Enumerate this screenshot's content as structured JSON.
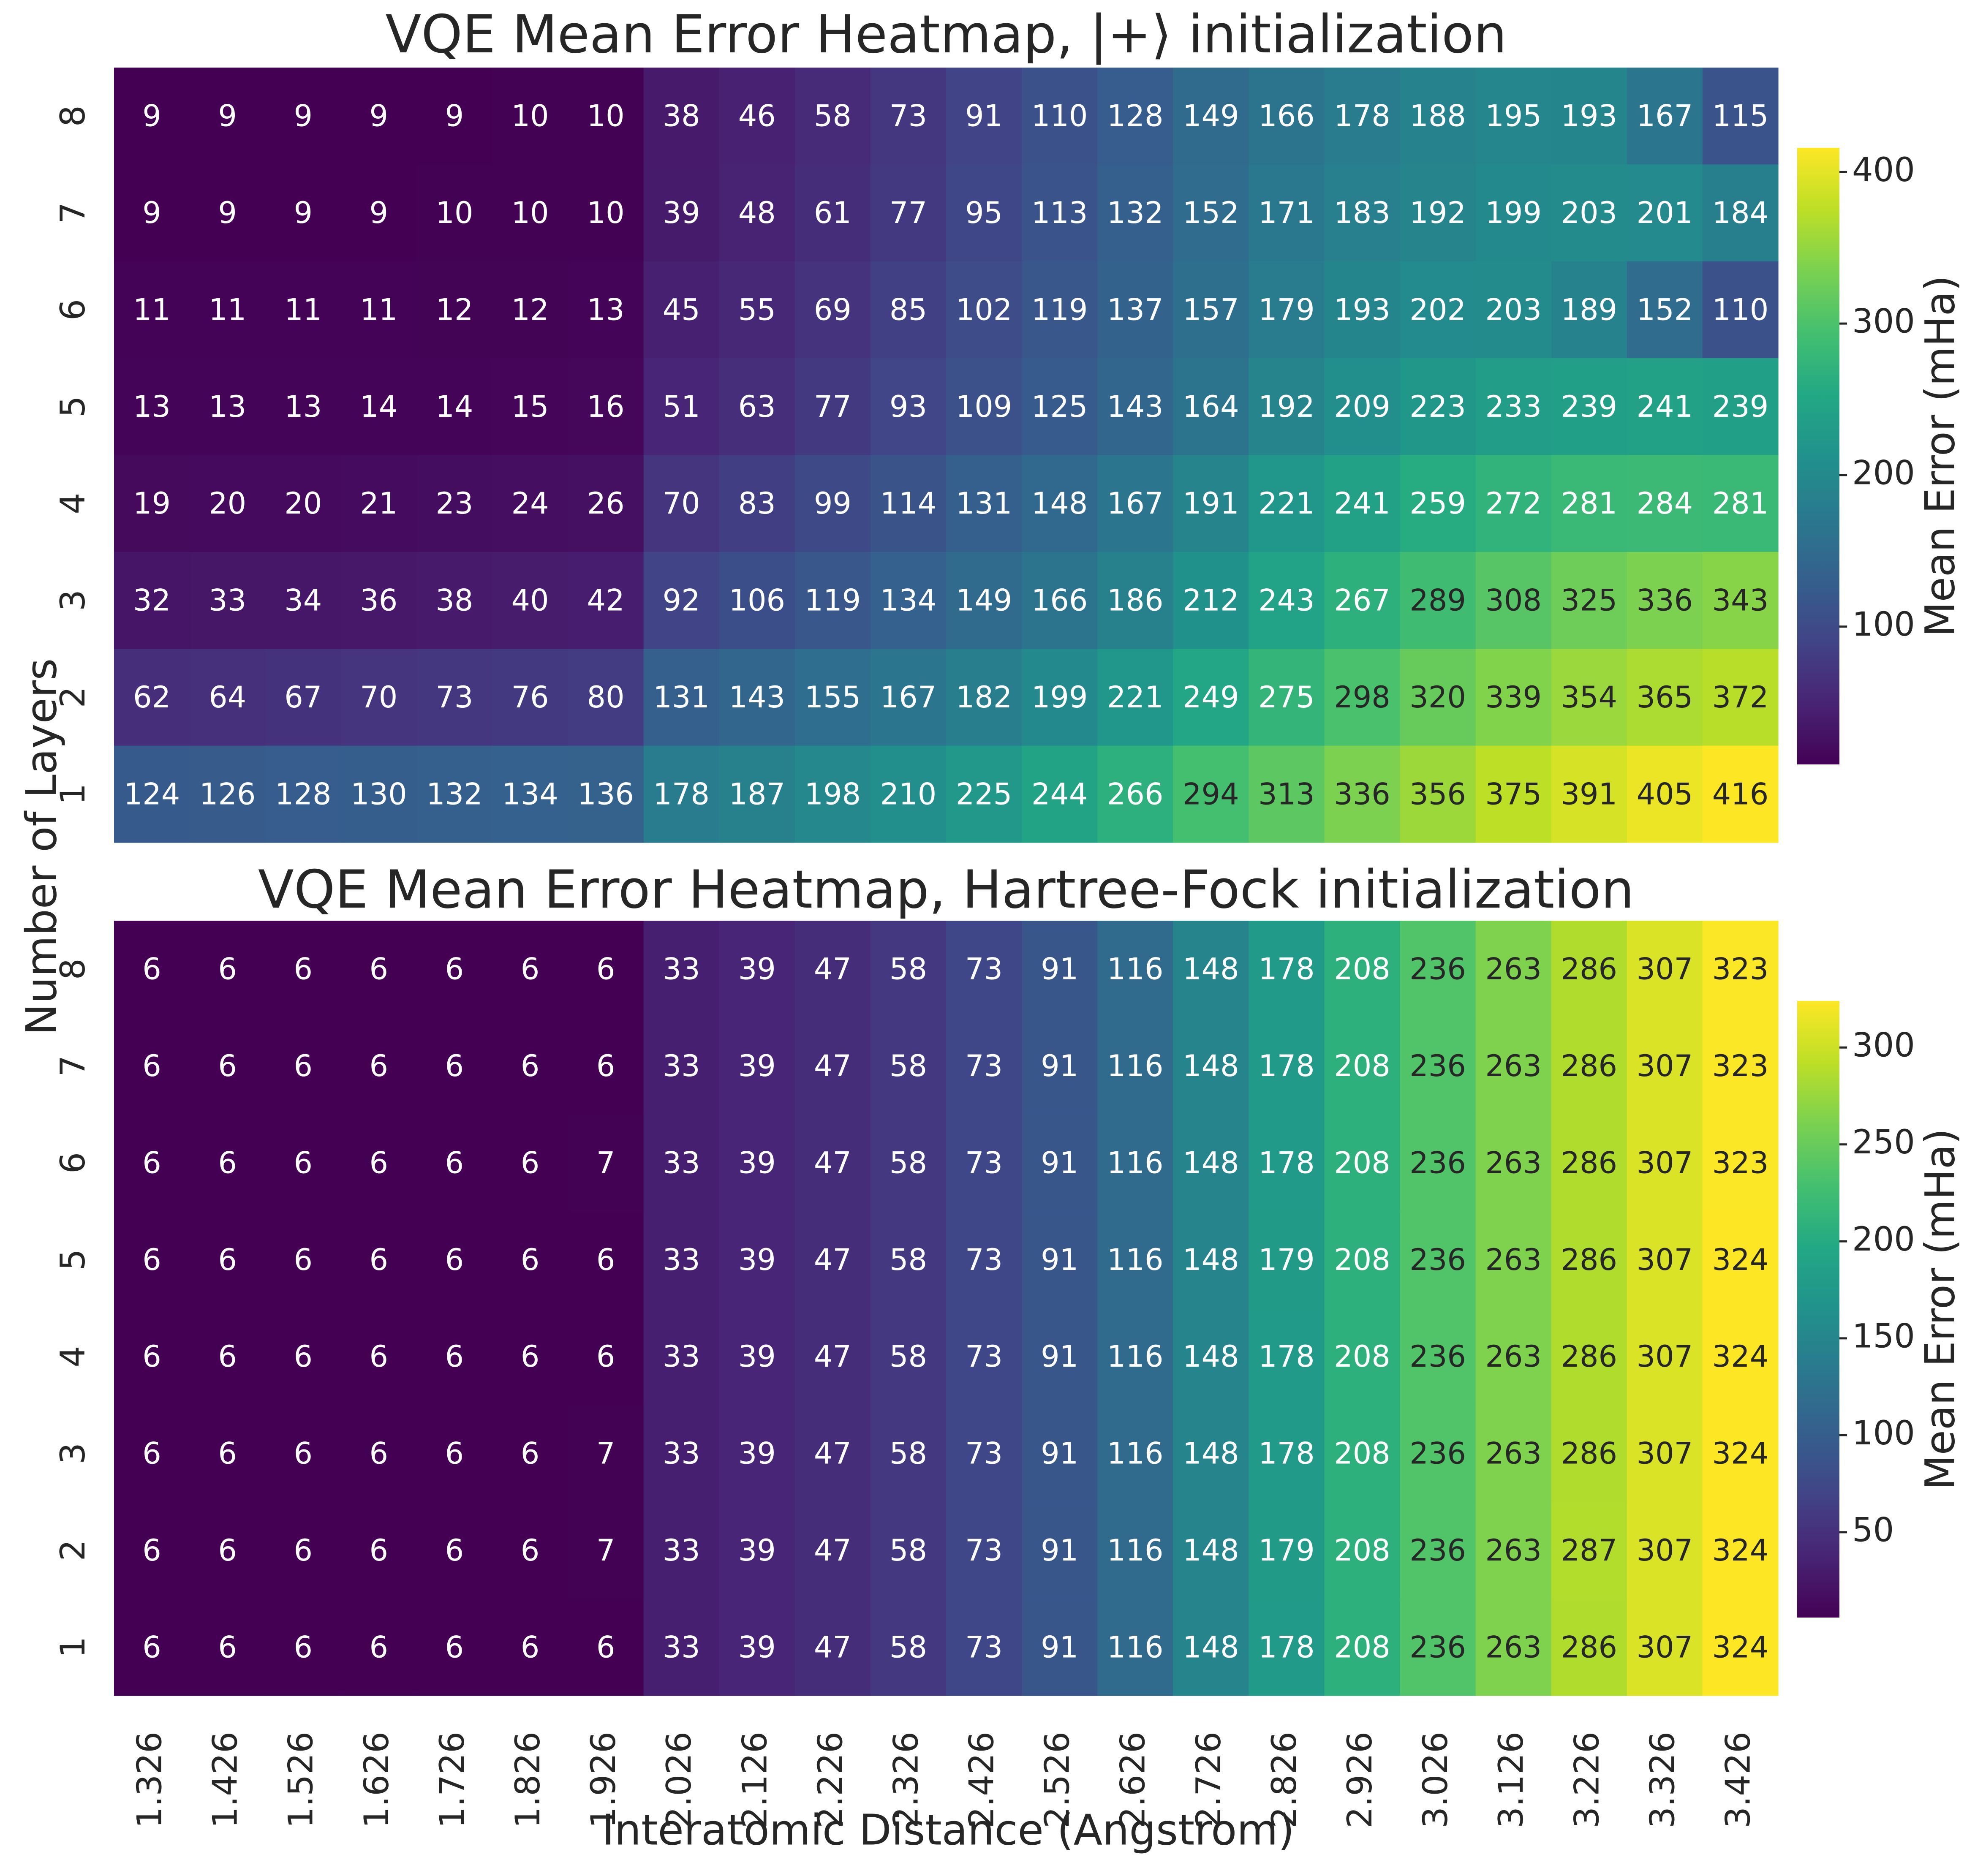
{
  "figure": {
    "shared_ylabel": "Number of Layers",
    "shared_xlabel": "Interatomic Distance (Angstrom)"
  },
  "chart_data": [
    {
      "type": "heatmap",
      "title": "VQE Mean Error Heatmap, |+⟩ initialization",
      "xlabel": "Interatomic Distance (Angstrom)",
      "ylabel": "Number of Layers",
      "x": [
        "1.326",
        "1.426",
        "1.526",
        "1.626",
        "1.726",
        "1.826",
        "1.926",
        "2.026",
        "2.126",
        "2.226",
        "2.326",
        "2.426",
        "2.526",
        "2.626",
        "2.726",
        "2.826",
        "2.926",
        "3.026",
        "3.126",
        "3.226",
        "3.326",
        "3.426"
      ],
      "y": [
        "8",
        "7",
        "6",
        "5",
        "4",
        "3",
        "2",
        "1"
      ],
      "values": [
        [
          9,
          9,
          9,
          9,
          9,
          10,
          10,
          38,
          46,
          58,
          73,
          91,
          110,
          128,
          149,
          166,
          178,
          188,
          195,
          193,
          167,
          115
        ],
        [
          9,
          9,
          9,
          9,
          10,
          10,
          10,
          39,
          48,
          61,
          77,
          95,
          113,
          132,
          152,
          171,
          183,
          192,
          199,
          203,
          201,
          184
        ],
        [
          11,
          11,
          11,
          11,
          12,
          12,
          13,
          45,
          55,
          69,
          85,
          102,
          119,
          137,
          157,
          179,
          193,
          202,
          203,
          189,
          152,
          110
        ],
        [
          13,
          13,
          13,
          14,
          14,
          15,
          16,
          51,
          63,
          77,
          93,
          109,
          125,
          143,
          164,
          192,
          209,
          223,
          233,
          239,
          241,
          239
        ],
        [
          19,
          20,
          20,
          21,
          23,
          24,
          26,
          70,
          83,
          99,
          114,
          131,
          148,
          167,
          191,
          221,
          241,
          259,
          272,
          281,
          284,
          281
        ],
        [
          32,
          33,
          34,
          36,
          38,
          40,
          42,
          92,
          106,
          119,
          134,
          149,
          166,
          186,
          212,
          243,
          267,
          289,
          308,
          325,
          336,
          343
        ],
        [
          62,
          64,
          67,
          70,
          73,
          76,
          80,
          131,
          143,
          155,
          167,
          182,
          199,
          221,
          249,
          275,
          298,
          320,
          339,
          354,
          365,
          372
        ],
        [
          124,
          126,
          128,
          130,
          132,
          134,
          136,
          178,
          187,
          198,
          210,
          225,
          244,
          266,
          294,
          313,
          336,
          356,
          375,
          391,
          405,
          416
        ]
      ],
      "colormap": "viridis",
      "color_range": [
        9,
        416
      ],
      "colorbar": {
        "label": "Mean Error (mHa)",
        "ticks": [
          "100",
          "200",
          "300",
          "400"
        ]
      }
    },
    {
      "type": "heatmap",
      "title": "VQE Mean Error Heatmap, Hartree-Fock initialization",
      "xlabel": "Interatomic Distance (Angstrom)",
      "ylabel": "Number of Layers",
      "x": [
        "1.326",
        "1.426",
        "1.526",
        "1.626",
        "1.726",
        "1.826",
        "1.926",
        "2.026",
        "2.126",
        "2.226",
        "2.326",
        "2.426",
        "2.526",
        "2.626",
        "2.726",
        "2.826",
        "2.926",
        "3.026",
        "3.126",
        "3.226",
        "3.326",
        "3.426"
      ],
      "y": [
        "8",
        "7",
        "6",
        "5",
        "4",
        "3",
        "2",
        "1"
      ],
      "values": [
        [
          6,
          6,
          6,
          6,
          6,
          6,
          6,
          33,
          39,
          47,
          58,
          73,
          91,
          116,
          148,
          178,
          208,
          236,
          263,
          286,
          307,
          323
        ],
        [
          6,
          6,
          6,
          6,
          6,
          6,
          6,
          33,
          39,
          47,
          58,
          73,
          91,
          116,
          148,
          178,
          208,
          236,
          263,
          286,
          307,
          323
        ],
        [
          6,
          6,
          6,
          6,
          6,
          6,
          7,
          33,
          39,
          47,
          58,
          73,
          91,
          116,
          148,
          178,
          208,
          236,
          263,
          286,
          307,
          323
        ],
        [
          6,
          6,
          6,
          6,
          6,
          6,
          6,
          33,
          39,
          47,
          58,
          73,
          91,
          116,
          148,
          179,
          208,
          236,
          263,
          286,
          307,
          324
        ],
        [
          6,
          6,
          6,
          6,
          6,
          6,
          6,
          33,
          39,
          47,
          58,
          73,
          91,
          116,
          148,
          178,
          208,
          236,
          263,
          286,
          307,
          324
        ],
        [
          6,
          6,
          6,
          6,
          6,
          6,
          7,
          33,
          39,
          47,
          58,
          73,
          91,
          116,
          148,
          178,
          208,
          236,
          263,
          286,
          307,
          324
        ],
        [
          6,
          6,
          6,
          6,
          6,
          6,
          7,
          33,
          39,
          47,
          58,
          73,
          91,
          116,
          148,
          179,
          208,
          236,
          263,
          287,
          307,
          324
        ],
        [
          6,
          6,
          6,
          6,
          6,
          6,
          6,
          33,
          39,
          47,
          58,
          73,
          91,
          116,
          148,
          178,
          208,
          236,
          263,
          286,
          307,
          324
        ]
      ],
      "colormap": "viridis",
      "color_range": [
        6,
        324
      ],
      "colorbar": {
        "label": "Mean Error (mHa)",
        "ticks": [
          "50",
          "100",
          "150",
          "200",
          "250",
          "300"
        ]
      }
    }
  ]
}
